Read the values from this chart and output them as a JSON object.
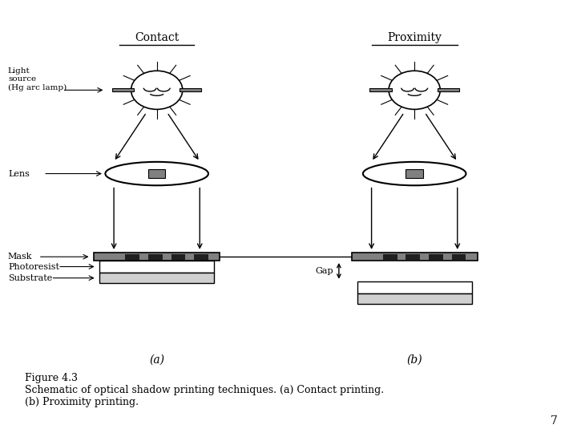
{
  "bg_color": "#ffffff",
  "line_color": "#000000",
  "gray_color": "#808080",
  "dark_color": "#202020",
  "title": "Figure 4.3\nSchematic of optical shadow printing techniques. (a) Contact printing.\n(b) Proximity printing.",
  "title_fontsize": 10,
  "page_number": "7",
  "contact_label": "Contact",
  "proximity_label": "Proximity",
  "label_a": "(a)",
  "label_b": "(b)",
  "light_source_label": "Light\nsource\n(Hg arc lamp)",
  "lens_label": "Lens",
  "mask_label": "Mask",
  "photoresist_label": "Photoresist",
  "substrate_label": "Substrate",
  "gap_label": "Gap"
}
